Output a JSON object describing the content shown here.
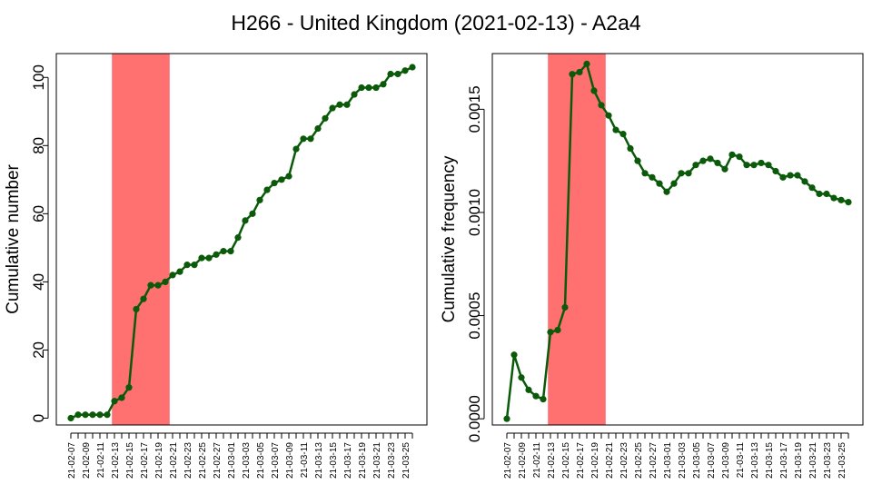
{
  "title": "H266 - United Kingdom (2021-02-13) - A2a4",
  "colors": {
    "line": "#0a5a0a",
    "highlight": "#ff7070",
    "axis": "#000000"
  },
  "x_tick_labels": [
    "21-02-07",
    "21-02-09",
    "21-02-11",
    "21-02-13",
    "21-02-15",
    "21-02-17",
    "21-02-19",
    "21-02-21",
    "21-02-23",
    "21-02-25",
    "21-02-27",
    "21-03-01",
    "21-03-03",
    "21-03-05",
    "21-03-07",
    "21-03-09",
    "21-03-11",
    "21-03-13",
    "21-03-15",
    "21-03-17",
    "21-03-19",
    "21-03-21",
    "21-03-23",
    "21-03-25"
  ],
  "chart_data": [
    {
      "type": "line",
      "ylabel": "Cumulative number",
      "x": [
        "21-02-07",
        "21-02-08",
        "21-02-09",
        "21-02-10",
        "21-02-11",
        "21-02-12",
        "21-02-13",
        "21-02-14",
        "21-02-15",
        "21-02-16",
        "21-02-17",
        "21-02-18",
        "21-02-19",
        "21-02-20",
        "21-02-21",
        "21-02-22",
        "21-02-23",
        "21-02-24",
        "21-02-25",
        "21-02-26",
        "21-02-27",
        "21-02-28",
        "21-03-01",
        "21-03-02",
        "21-03-03",
        "21-03-04",
        "21-03-05",
        "21-03-06",
        "21-03-07",
        "21-03-08",
        "21-03-09",
        "21-03-10",
        "21-03-11",
        "21-03-12",
        "21-03-13",
        "21-03-14",
        "21-03-15",
        "21-03-16",
        "21-03-17",
        "21-03-18",
        "21-03-19",
        "21-03-20",
        "21-03-21",
        "21-03-22",
        "21-03-23",
        "21-03-24",
        "21-03-25",
        "21-03-26"
      ],
      "values": [
        0,
        1,
        1,
        1,
        1,
        1,
        5,
        6,
        9,
        32,
        35,
        39,
        39,
        40,
        42,
        43,
        45,
        45,
        47,
        47,
        48,
        49,
        49,
        53,
        58,
        60,
        64,
        67,
        69,
        70,
        71,
        79,
        82,
        82,
        85,
        88,
        91,
        92,
        92,
        95,
        97,
        97,
        97,
        98,
        101,
        101,
        102,
        103
      ],
      "ylim": [
        -2,
        107
      ],
      "yticks": [
        0,
        20,
        40,
        60,
        80,
        100
      ],
      "highlight": [
        "21-02-13",
        "21-02-20"
      ],
      "grid": false
    },
    {
      "type": "line",
      "ylabel": "Cumulative frequency",
      "x": [
        "21-02-07",
        "21-02-08",
        "21-02-09",
        "21-02-10",
        "21-02-11",
        "21-02-12",
        "21-02-13",
        "21-02-14",
        "21-02-15",
        "21-02-16",
        "21-02-17",
        "21-02-18",
        "21-02-19",
        "21-02-20",
        "21-02-21",
        "21-02-22",
        "21-02-23",
        "21-02-24",
        "21-02-25",
        "21-02-26",
        "21-02-27",
        "21-02-28",
        "21-03-01",
        "21-03-02",
        "21-03-03",
        "21-03-04",
        "21-03-05",
        "21-03-06",
        "21-03-07",
        "21-03-08",
        "21-03-09",
        "21-03-10",
        "21-03-11",
        "21-03-12",
        "21-03-13",
        "21-03-14",
        "21-03-15",
        "21-03-16",
        "21-03-17",
        "21-03-18",
        "21-03-19",
        "21-03-20",
        "21-03-21",
        "21-03-22",
        "21-03-23",
        "21-03-24",
        "21-03-25",
        "21-03-26"
      ],
      "values": [
        0.0,
        0.00031,
        0.0002,
        0.00014,
        0.00011,
        9.5e-05,
        0.00042,
        0.00043,
        0.00054,
        0.00167,
        0.00168,
        0.00172,
        0.00159,
        0.00152,
        0.00147,
        0.0014,
        0.00138,
        0.00131,
        0.00125,
        0.00119,
        0.00117,
        0.00114,
        0.0011,
        0.00114,
        0.00119,
        0.00119,
        0.00123,
        0.00125,
        0.00126,
        0.00124,
        0.00121,
        0.00128,
        0.00127,
        0.00123,
        0.00123,
        0.00124,
        0.00123,
        0.0012,
        0.00117,
        0.00118,
        0.00118,
        0.00115,
        0.00112,
        0.00109,
        0.00109,
        0.00107,
        0.00106,
        0.00105
      ],
      "ylim": [
        -3e-05,
        0.00177
      ],
      "yticks": [
        0.0,
        0.0005,
        0.001,
        0.0015
      ],
      "ytick_labels": [
        "0.0000",
        "0.0005",
        "0.0010",
        "0.0015"
      ],
      "highlight": [
        "21-02-13",
        "21-02-20"
      ],
      "grid": false
    }
  ]
}
